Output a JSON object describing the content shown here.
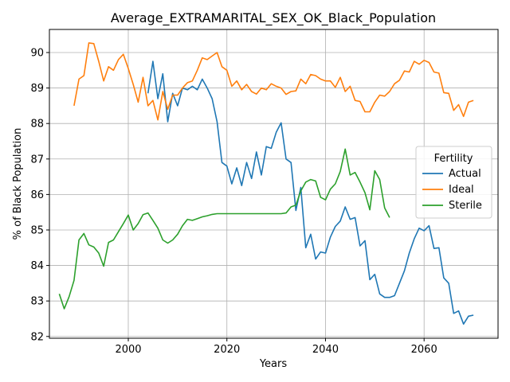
{
  "chart_data": {
    "type": "line",
    "title": "Average_EXTRAMARITAL_SEX_OK_Black_Population",
    "xlabel": "Years",
    "ylabel": "% of Black Population",
    "xlim": [
      1984,
      2075
    ],
    "ylim": [
      81.95,
      90.65
    ],
    "xticks": [
      2000,
      2020,
      2040,
      2060
    ],
    "yticks": [
      82,
      83,
      84,
      85,
      86,
      87,
      88,
      89,
      90
    ],
    "grid": true,
    "legend": {
      "title": "Fertility",
      "placement": "center-right"
    },
    "series": [
      {
        "name": "Actual",
        "color": "#1f77b4",
        "x": [
          2004,
          2005,
          2006,
          2007,
          2008,
          2009,
          2010,
          2011,
          2012,
          2013,
          2014,
          2015,
          2016,
          2017,
          2018,
          2019,
          2020,
          2021,
          2022,
          2023,
          2024,
          2025,
          2026,
          2027,
          2028,
          2029,
          2030,
          2031,
          2032,
          2033,
          2034,
          2035,
          2036,
          2037,
          2038,
          2039,
          2040,
          2041,
          2042,
          2043,
          2044,
          2045,
          2046,
          2047,
          2048,
          2049,
          2050,
          2051,
          2052,
          2053,
          2054,
          2055,
          2056,
          2057,
          2058,
          2059,
          2060,
          2061,
          2062,
          2063,
          2064,
          2065,
          2066,
          2067,
          2068,
          2069,
          2070
        ],
        "values": [
          88.85,
          89.75,
          88.7,
          89.4,
          88.05,
          88.85,
          88.5,
          89.0,
          88.95,
          89.05,
          88.95,
          89.25,
          89.0,
          88.7,
          88.05,
          86.9,
          86.8,
          86.3,
          86.75,
          86.25,
          86.9,
          86.45,
          87.2,
          86.55,
          87.35,
          87.3,
          87.75,
          88.02,
          87.0,
          86.9,
          85.55,
          86.2,
          84.5,
          84.88,
          84.18,
          84.38,
          84.35,
          84.8,
          85.1,
          85.25,
          85.65,
          85.3,
          85.35,
          84.55,
          84.7,
          83.6,
          83.75,
          83.2,
          83.1,
          83.1,
          83.15,
          83.5,
          83.85,
          84.35,
          84.75,
          85.05,
          84.98,
          85.12,
          84.48,
          84.5,
          83.65,
          83.5,
          82.65,
          82.72,
          82.35,
          82.57,
          82.6
        ]
      },
      {
        "name": "Ideal",
        "color": "#ff7f0e",
        "x": [
          1989,
          1990,
          1991,
          1992,
          1993,
          1994,
          1995,
          1996,
          1997,
          1998,
          1999,
          2000,
          2001,
          2002,
          2003,
          2004,
          2005,
          2006,
          2007,
          2008,
          2009,
          2010,
          2011,
          2012,
          2013,
          2014,
          2015,
          2016,
          2017,
          2018,
          2019,
          2020,
          2021,
          2022,
          2023,
          2024,
          2025,
          2026,
          2027,
          2028,
          2029,
          2030,
          2031,
          2032,
          2033,
          2034,
          2035,
          2036,
          2037,
          2038,
          2039,
          2040,
          2041,
          2042,
          2043,
          2044,
          2045,
          2046,
          2047,
          2048,
          2049,
          2050,
          2051,
          2052,
          2053,
          2054,
          2055,
          2056,
          2057,
          2058,
          2059,
          2060,
          2061,
          2062,
          2063,
          2064,
          2065,
          2066,
          2067,
          2068,
          2069,
          2070
        ],
        "values": [
          88.5,
          89.25,
          89.35,
          90.27,
          90.25,
          89.75,
          89.2,
          89.6,
          89.5,
          89.8,
          89.95,
          89.55,
          89.1,
          88.6,
          89.3,
          88.5,
          88.65,
          88.1,
          88.9,
          88.4,
          88.8,
          88.8,
          89.0,
          89.15,
          89.2,
          89.5,
          89.85,
          89.8,
          89.9,
          90.0,
          89.6,
          89.5,
          89.05,
          89.2,
          88.95,
          89.1,
          88.9,
          88.83,
          89.0,
          88.95,
          89.12,
          89.05,
          89.0,
          88.82,
          88.9,
          88.92,
          89.25,
          89.12,
          89.38,
          89.35,
          89.25,
          89.2,
          89.2,
          89.02,
          89.3,
          88.9,
          89.05,
          88.65,
          88.62,
          88.33,
          88.33,
          88.6,
          88.8,
          88.77,
          88.9,
          89.12,
          89.22,
          89.48,
          89.45,
          89.75,
          89.67,
          89.78,
          89.72,
          89.45,
          89.42,
          88.87,
          88.85,
          88.37,
          88.53,
          88.2,
          88.6,
          88.65
        ]
      },
      {
        "name": "Sterile",
        "color": "#2ca02c",
        "x": [
          1986,
          1987,
          1988,
          1989,
          1990,
          1991,
          1992,
          1993,
          1994,
          1995,
          1996,
          1997,
          1998,
          1999,
          2000,
          2001,
          2002,
          2003,
          2004,
          2005,
          2006,
          2007,
          2008,
          2009,
          2010,
          2011,
          2012,
          2013,
          2014,
          2015,
          2016,
          2017,
          2018,
          2019,
          2020,
          2021,
          2022,
          2023,
          2024,
          2025,
          2026,
          2027,
          2028,
          2029,
          2030,
          2031,
          2032,
          2033,
          2034,
          2035,
          2036,
          2037,
          2038,
          2039,
          2040,
          2041,
          2042,
          2043,
          2044,
          2045,
          2046,
          2047,
          2048,
          2049,
          2050,
          2051,
          2052,
          2053
        ],
        "values": [
          83.2,
          82.78,
          83.12,
          83.58,
          84.72,
          84.9,
          84.58,
          84.52,
          84.35,
          83.98,
          84.65,
          84.72,
          84.95,
          85.18,
          85.42,
          85.0,
          85.18,
          85.43,
          85.48,
          85.27,
          85.05,
          84.72,
          84.63,
          84.72,
          84.88,
          85.12,
          85.3,
          85.27,
          85.32,
          85.37,
          85.4,
          85.44,
          85.46,
          85.46,
          85.46,
          85.46,
          85.46,
          85.46,
          85.46,
          85.46,
          85.46,
          85.46,
          85.46,
          85.46,
          85.46,
          85.46,
          85.48,
          85.65,
          85.7,
          86.1,
          86.35,
          86.42,
          86.38,
          85.92,
          85.85,
          86.15,
          86.3,
          86.65,
          87.28,
          86.55,
          86.62,
          86.35,
          86.05,
          85.57,
          86.67,
          86.42,
          85.62,
          85.35
        ]
      }
    ]
  }
}
